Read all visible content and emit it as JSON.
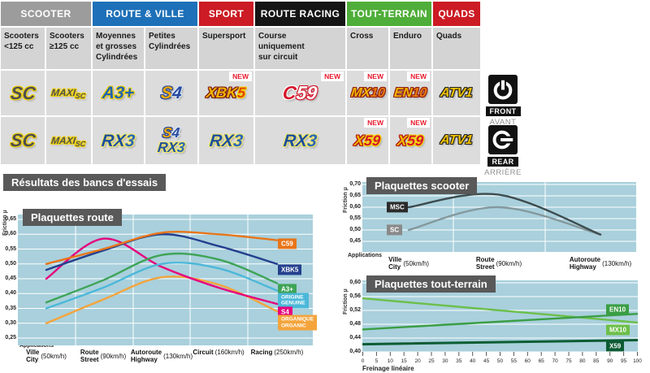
{
  "table": {
    "categories": [
      {
        "label": "SCOOTER",
        "color": "#9c9c9c",
        "span": 2
      },
      {
        "label": "ROUTE & VILLE",
        "color": "#1e70b8",
        "span": 2
      },
      {
        "label": "SPORT",
        "color": "#cc1b24",
        "span": 1
      },
      {
        "label": "ROUTE RACING",
        "color": "#151515",
        "span": 1
      },
      {
        "label": "TOUT-TERRAIN",
        "color": "#4fae39",
        "span": 2
      },
      {
        "label": "QUADS",
        "color": "#cc1b24",
        "span": 1
      }
    ],
    "subheaders": [
      "Scooters\n<125 cc",
      "Scooters\n≥125 cc",
      "Moyennes\net grosses\nCylindrées",
      "Petites\nCylindrées",
      "Supersport",
      "Course\nuniquement\nsur circuit",
      "Cross",
      "Enduro",
      "Quads"
    ],
    "new_badge": "NEW",
    "front_row": [
      {
        "logos": [
          "sc"
        ],
        "new": false
      },
      {
        "logos": [
          "maxisc"
        ],
        "new": false
      },
      {
        "logos": [
          "a3plus"
        ],
        "new": false
      },
      {
        "logos": [
          "s4"
        ],
        "new": false
      },
      {
        "logos": [
          "xbk5"
        ],
        "new": true
      },
      {
        "logos": [
          "c59"
        ],
        "new": true
      },
      {
        "logos": [
          "mx10"
        ],
        "new": true
      },
      {
        "logos": [
          "en10"
        ],
        "new": true
      },
      {
        "logos": [
          "atv1"
        ],
        "new": false
      }
    ],
    "rear_row": [
      {
        "logos": [
          "sc"
        ],
        "new": false
      },
      {
        "logos": [
          "maxisc"
        ],
        "new": false
      },
      {
        "logos": [
          "rx3"
        ],
        "new": false
      },
      {
        "logos": [
          "s4",
          "rx3"
        ],
        "new": false
      },
      {
        "logos": [
          "rx3"
        ],
        "new": false
      },
      {
        "logos": [
          "rx3"
        ],
        "new": false
      },
      {
        "logos": [
          "x59"
        ],
        "new": true
      },
      {
        "logos": [
          "x59"
        ],
        "new": true
      },
      {
        "logos": [
          "atv1"
        ],
        "new": false
      }
    ],
    "logos": {
      "sc": {
        "size": 22,
        "parts": [
          {
            "t": "SC",
            "c": "#4f4f4f",
            "o": "#f2d40e"
          }
        ]
      },
      "maxisc": {
        "size": 12,
        "parts": [
          {
            "t": "MAXI",
            "c": "#4f4f4f",
            "o": "#f2d40e",
            "fs": 12
          },
          {
            "t": "SC",
            "c": "#4f4f4f",
            "o": "#f2d40e",
            "fs": 9,
            "dy": 3
          }
        ]
      },
      "a3plus": {
        "size": 21,
        "parts": [
          {
            "t": "A3+",
            "c": "#1e62b0",
            "o": "#f2d40e"
          }
        ]
      },
      "s4": {
        "size": 21,
        "parts": [
          {
            "t": "S",
            "c": "#f0a800",
            "o": "#27499e"
          },
          {
            "t": "4",
            "c": "#27499e",
            "o": "#d9e8f8"
          }
        ]
      },
      "xbk5": {
        "size": 18,
        "parts": [
          {
            "t": "XBK",
            "c": "#f0b400",
            "o": "#7a1616"
          },
          {
            "t": "5",
            "c": "#e34300",
            "o": "#f5d800"
          }
        ]
      },
      "c59": {
        "size": 23,
        "parts": [
          {
            "t": "C",
            "c": "#d6172b",
            "o": "#ffffff"
          },
          {
            "t": "59",
            "c": "#ffffff",
            "o": "#d6172b"
          }
        ]
      },
      "mx10": {
        "size": 16,
        "parts": [
          {
            "t": "MX",
            "c": "#f0b400",
            "o": "#8f1d12"
          },
          {
            "t": "10",
            "c": "#e87b12",
            "o": "#8f1d12"
          }
        ]
      },
      "en10": {
        "size": 16,
        "parts": [
          {
            "t": "EN",
            "c": "#f0b400",
            "o": "#8f1d12"
          },
          {
            "t": "10",
            "c": "#e87b12",
            "o": "#8f1d12"
          }
        ]
      },
      "atv1": {
        "size": 16,
        "parts": [
          {
            "t": "ATV1",
            "c": "#f0c000",
            "o": "#222222"
          }
        ]
      },
      "rx3": {
        "size": 21,
        "parts": [
          {
            "t": "RX",
            "c": "#1d4f9e",
            "o": "#f2e96a"
          },
          {
            "t": "3",
            "c": "#2a66b8",
            "o": "#f2e96a"
          }
        ]
      },
      "x59": {
        "size": 18,
        "parts": [
          {
            "t": "X",
            "c": "#f0b400",
            "o": "#b01212"
          },
          {
            "t": "59",
            "c": "#d6172b",
            "o": "#f5d800"
          }
        ]
      }
    }
  },
  "side": {
    "front": {
      "label": "FRONT",
      "sublabel": "AVANT"
    },
    "rear": {
      "label": "REAR",
      "sublabel": "ARRIÈRE"
    }
  },
  "results_title": "Résultats des bancs d'essais",
  "colors": {
    "plot_background": "#a9d0dc",
    "gridline": "#ffffff",
    "title_box": "#595959",
    "new_badge_red": "#e8192c"
  },
  "chart_data": [
    {
      "type": "line",
      "title": "Plaquettes route",
      "ylabel": "Friction µ",
      "xlabel_prefix": "Applications",
      "ylim": [
        0.25,
        0.65
      ],
      "yticks": [
        "0,65",
        "0,60",
        "0,55",
        "0,50",
        "0,45",
        "0,40",
        "0,35",
        "0,30",
        "0,25"
      ],
      "grid": true,
      "legend_position": "right",
      "categories": [
        {
          "main": "Ville",
          "sub": "City",
          "speed": "(50km/h)"
        },
        {
          "main": "Route",
          "sub": "Street",
          "speed": "(90km/h)"
        },
        {
          "main": "Autoroute",
          "sub": "Highway",
          "speed": "(130km/h)"
        },
        {
          "main": "Circuit",
          "speed": "(160km/h)"
        },
        {
          "main": "Racing",
          "speed": "(250km/h)"
        }
      ],
      "series": [
        {
          "name": "C59",
          "label_lines": [
            "C59"
          ],
          "color": "#e8751a",
          "values": [
            0.5,
            0.55,
            0.605,
            0.6,
            0.58
          ]
        },
        {
          "name": "XBK5",
          "label_lines": [
            "XBK5"
          ],
          "color": "#24408e",
          "values": [
            0.48,
            0.545,
            0.6,
            0.56,
            0.5
          ]
        },
        {
          "name": "A3+",
          "label_lines": [
            "A3+"
          ],
          "color": "#3fa457",
          "values": [
            0.37,
            0.445,
            0.53,
            0.515,
            0.435
          ]
        },
        {
          "name": "ORIGINE / GENUINE",
          "label_lines": [
            "ORIGINE",
            "GENUINE"
          ],
          "color": "#4cb8d9",
          "values": [
            0.35,
            0.42,
            0.5,
            0.485,
            0.41
          ]
        },
        {
          "name": "S4",
          "label_lines": [
            "S4"
          ],
          "color": "#e5007d",
          "values": [
            0.45,
            0.585,
            0.49,
            0.42,
            0.365
          ]
        },
        {
          "name": "ORGANIQUE / ORGANIC",
          "label_lines": [
            "ORGANIQUE",
            "ORGANIC"
          ],
          "color": "#f4a43c",
          "values": [
            0.3,
            0.38,
            0.455,
            0.43,
            0.34
          ]
        }
      ]
    },
    {
      "type": "line",
      "title": "Plaquettes scooter",
      "ylabel": "Friction µ",
      "xlabel_prefix": "Applications",
      "ylim": [
        0.45,
        0.7
      ],
      "yticks": [
        "0,70",
        "0,65",
        "0,60",
        "0,55",
        "0,50",
        "0,45"
      ],
      "grid": true,
      "legend_position": "left",
      "categories": [
        {
          "main": "Ville",
          "sub": "City",
          "speed": "(50km/h)"
        },
        {
          "main": "Route",
          "sub": "Street",
          "speed": "(90km/h)"
        },
        {
          "main": "Autoroute",
          "sub": "Highway",
          "speed": "(130km/h)"
        }
      ],
      "series": [
        {
          "name": "MSC",
          "label_lines": [
            "MSC"
          ],
          "color": "#3d4b4e",
          "chip_bg": "#2b2b2b",
          "values": [
            0.6,
            0.655,
            0.48
          ]
        },
        {
          "name": "SC",
          "label_lines": [
            "SC"
          ],
          "color": "#84989c",
          "chip_bg": "#8a8a8a",
          "values": [
            0.5,
            0.6,
            0.48
          ]
        }
      ]
    },
    {
      "type": "line",
      "title": "Plaquettes tout-terrain",
      "ylabel": "Friction µ",
      "xlabel": "Freinage linéaire",
      "ylim": [
        0.4,
        0.6
      ],
      "yticks": [
        "0,60",
        "0,56",
        "0,52",
        "0,48",
        "0,44",
        "0,40"
      ],
      "grid": true,
      "legend_position": "right",
      "x_ticks": [
        0,
        5,
        10,
        15,
        20,
        25,
        30,
        35,
        40,
        45,
        50,
        55,
        60,
        65,
        70,
        75,
        80,
        85,
        90,
        95,
        100
      ],
      "x_range": [
        0,
        100
      ],
      "series": [
        {
          "name": "EN10",
          "label_lines": [
            "EN10"
          ],
          "color": "#3a9e45",
          "values": [
            0.465,
            0.51
          ]
        },
        {
          "name": "MX10",
          "label_lines": [
            "MX10"
          ],
          "color": "#6cbf4a",
          "values": [
            0.555,
            0.485
          ]
        },
        {
          "name": "X59",
          "label_lines": [
            "X59"
          ],
          "color": "#0d5c33",
          "width": 3,
          "values": [
            0.422,
            0.434
          ]
        }
      ]
    }
  ]
}
